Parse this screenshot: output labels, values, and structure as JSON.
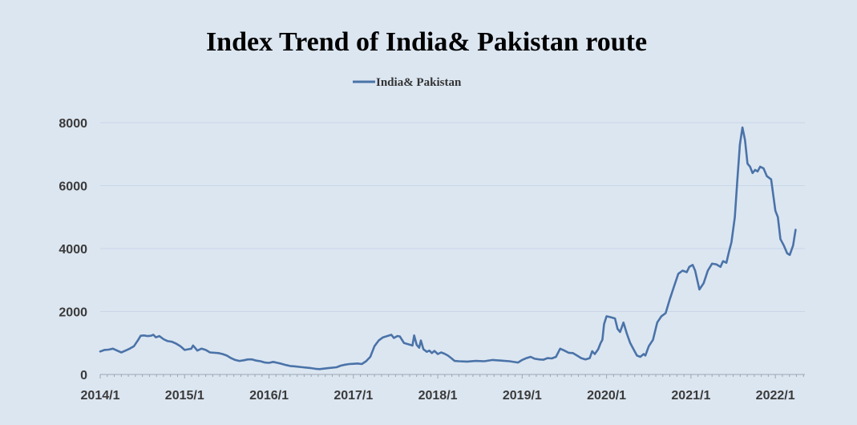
{
  "chart_data": {
    "type": "line",
    "title": "Index Trend of India& Pakistan route",
    "xlabel": "",
    "ylabel": "",
    "ylim": [
      0,
      8000
    ],
    "yticks": [
      0,
      2000,
      4000,
      6000,
      8000
    ],
    "xticks": [
      "2014/1",
      "2015/1",
      "2016/1",
      "2017/1",
      "2018/1",
      "2019/1",
      "2020/1",
      "2021/1",
      "2022/1"
    ],
    "xlim": [
      2014.0,
      2022.35
    ],
    "grid": true,
    "legend_position": "top-center",
    "series": [
      {
        "name": "India& Pakistan",
        "color": "#4a73a8",
        "points": [
          [
            2014.0,
            730
          ],
          [
            2014.05,
            780
          ],
          [
            2014.1,
            790
          ],
          [
            2014.15,
            820
          ],
          [
            2014.2,
            760
          ],
          [
            2014.25,
            700
          ],
          [
            2014.3,
            760
          ],
          [
            2014.35,
            820
          ],
          [
            2014.4,
            900
          ],
          [
            2014.45,
            1100
          ],
          [
            2014.48,
            1230
          ],
          [
            2014.52,
            1240
          ],
          [
            2014.56,
            1220
          ],
          [
            2014.6,
            1230
          ],
          [
            2014.63,
            1260
          ],
          [
            2014.66,
            1180
          ],
          [
            2014.7,
            1220
          ],
          [
            2014.75,
            1120
          ],
          [
            2014.8,
            1060
          ],
          [
            2014.85,
            1040
          ],
          [
            2014.9,
            980
          ],
          [
            2014.95,
            900
          ],
          [
            2015.0,
            780
          ],
          [
            2015.04,
            800
          ],
          [
            2015.08,
            820
          ],
          [
            2015.1,
            920
          ],
          [
            2015.12,
            860
          ],
          [
            2015.15,
            760
          ],
          [
            2015.2,
            820
          ],
          [
            2015.25,
            780
          ],
          [
            2015.3,
            700
          ],
          [
            2015.4,
            680
          ],
          [
            2015.45,
            650
          ],
          [
            2015.5,
            600
          ],
          [
            2015.55,
            520
          ],
          [
            2015.6,
            460
          ],
          [
            2015.65,
            430
          ],
          [
            2015.7,
            450
          ],
          [
            2015.75,
            480
          ],
          [
            2015.8,
            480
          ],
          [
            2015.85,
            440
          ],
          [
            2015.9,
            420
          ],
          [
            2015.95,
            380
          ],
          [
            2016.0,
            370
          ],
          [
            2016.05,
            400
          ],
          [
            2016.1,
            370
          ],
          [
            2016.15,
            340
          ],
          [
            2016.2,
            300
          ],
          [
            2016.25,
            270
          ],
          [
            2016.3,
            260
          ],
          [
            2016.4,
            230
          ],
          [
            2016.5,
            200
          ],
          [
            2016.55,
            180
          ],
          [
            2016.6,
            170
          ],
          [
            2016.7,
            200
          ],
          [
            2016.8,
            230
          ],
          [
            2016.85,
            280
          ],
          [
            2016.9,
            310
          ],
          [
            2016.95,
            330
          ],
          [
            2017.0,
            340
          ],
          [
            2017.05,
            350
          ],
          [
            2017.1,
            330
          ],
          [
            2017.15,
            420
          ],
          [
            2017.2,
            560
          ],
          [
            2017.25,
            900
          ],
          [
            2017.3,
            1080
          ],
          [
            2017.35,
            1180
          ],
          [
            2017.4,
            1220
          ],
          [
            2017.45,
            1260
          ],
          [
            2017.48,
            1160
          ],
          [
            2017.52,
            1220
          ],
          [
            2017.55,
            1210
          ],
          [
            2017.6,
            1000
          ],
          [
            2017.65,
            960
          ],
          [
            2017.7,
            920
          ],
          [
            2017.72,
            1240
          ],
          [
            2017.75,
            940
          ],
          [
            2017.78,
            850
          ],
          [
            2017.8,
            1080
          ],
          [
            2017.83,
            800
          ],
          [
            2017.87,
            720
          ],
          [
            2017.9,
            760
          ],
          [
            2017.93,
            680
          ],
          [
            2017.96,
            750
          ],
          [
            2018.0,
            650
          ],
          [
            2018.04,
            700
          ],
          [
            2018.08,
            660
          ],
          [
            2018.12,
            600
          ],
          [
            2018.16,
            520
          ],
          [
            2018.2,
            430
          ],
          [
            2018.25,
            420
          ],
          [
            2018.35,
            410
          ],
          [
            2018.45,
            430
          ],
          [
            2018.55,
            420
          ],
          [
            2018.65,
            460
          ],
          [
            2018.75,
            440
          ],
          [
            2018.85,
            420
          ],
          [
            2018.95,
            380
          ],
          [
            2019.0,
            460
          ],
          [
            2019.05,
            520
          ],
          [
            2019.1,
            560
          ],
          [
            2019.15,
            500
          ],
          [
            2019.2,
            480
          ],
          [
            2019.25,
            470
          ],
          [
            2019.3,
            520
          ],
          [
            2019.35,
            510
          ],
          [
            2019.4,
            560
          ],
          [
            2019.45,
            820
          ],
          [
            2019.5,
            760
          ],
          [
            2019.55,
            690
          ],
          [
            2019.6,
            680
          ],
          [
            2019.65,
            600
          ],
          [
            2019.7,
            520
          ],
          [
            2019.75,
            480
          ],
          [
            2019.8,
            520
          ],
          [
            2019.83,
            740
          ],
          [
            2019.86,
            650
          ],
          [
            2019.9,
            800
          ],
          [
            2019.93,
            1000
          ],
          [
            2019.95,
            1100
          ],
          [
            2019.97,
            1600
          ],
          [
            2020.0,
            1850
          ],
          [
            2020.05,
            1820
          ],
          [
            2020.1,
            1780
          ],
          [
            2020.13,
            1450
          ],
          [
            2020.16,
            1350
          ],
          [
            2020.2,
            1650
          ],
          [
            2020.24,
            1300
          ],
          [
            2020.28,
            1000
          ],
          [
            2020.32,
            800
          ],
          [
            2020.36,
            600
          ],
          [
            2020.4,
            560
          ],
          [
            2020.44,
            650
          ],
          [
            2020.46,
            600
          ],
          [
            2020.5,
            900
          ],
          [
            2020.55,
            1100
          ],
          [
            2020.6,
            1650
          ],
          [
            2020.65,
            1850
          ],
          [
            2020.7,
            1950
          ],
          [
            2020.75,
            2400
          ],
          [
            2020.8,
            2800
          ],
          [
            2020.85,
            3200
          ],
          [
            2020.9,
            3300
          ],
          [
            2020.95,
            3250
          ],
          [
            2020.98,
            3420
          ],
          [
            2021.02,
            3480
          ],
          [
            2021.05,
            3300
          ],
          [
            2021.1,
            2700
          ],
          [
            2021.15,
            2900
          ],
          [
            2021.2,
            3300
          ],
          [
            2021.25,
            3520
          ],
          [
            2021.3,
            3500
          ],
          [
            2021.35,
            3420
          ],
          [
            2021.38,
            3600
          ],
          [
            2021.42,
            3550
          ],
          [
            2021.45,
            3900
          ],
          [
            2021.48,
            4200
          ],
          [
            2021.52,
            5000
          ],
          [
            2021.55,
            6200
          ],
          [
            2021.58,
            7300
          ],
          [
            2021.61,
            7850
          ],
          [
            2021.64,
            7450
          ],
          [
            2021.67,
            6700
          ],
          [
            2021.7,
            6600
          ],
          [
            2021.73,
            6400
          ],
          [
            2021.76,
            6500
          ],
          [
            2021.79,
            6450
          ],
          [
            2021.82,
            6600
          ],
          [
            2021.86,
            6550
          ],
          [
            2021.9,
            6300
          ],
          [
            2021.95,
            6200
          ],
          [
            2022.0,
            5200
          ],
          [
            2022.03,
            5000
          ],
          [
            2022.06,
            4300
          ],
          [
            2022.1,
            4100
          ],
          [
            2022.14,
            3850
          ],
          [
            2022.17,
            3800
          ],
          [
            2022.21,
            4100
          ],
          [
            2022.24,
            4600
          ]
        ]
      }
    ]
  }
}
